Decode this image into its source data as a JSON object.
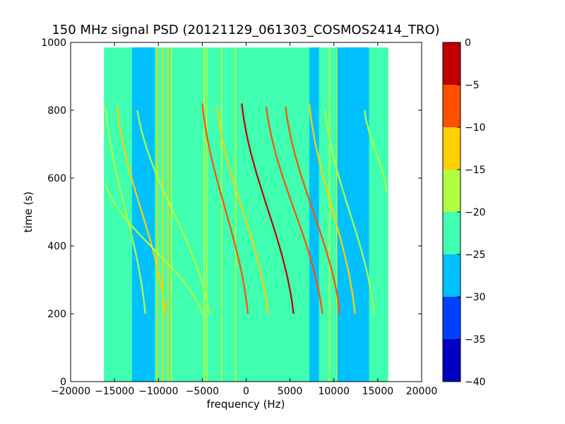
{
  "chart_data": {
    "type": "heatmap",
    "title": "150 MHz signal PSD (20121129_061303_COSMOS2414_TRO)",
    "xlabel": "frequency (Hz)",
    "ylabel": "time (s)",
    "xlim": [
      -20000,
      20000
    ],
    "ylim": [
      0,
      1000
    ],
    "x_ticks": [
      -20000,
      -15000,
      -10000,
      -5000,
      0,
      5000,
      10000,
      15000,
      20000
    ],
    "y_ticks": [
      0,
      200,
      400,
      600,
      800,
      1000
    ],
    "data_extent": {
      "freq": [
        -16200,
        16200
      ],
      "time": [
        0,
        985
      ]
    },
    "colorbar": {
      "levels": [
        -40,
        -35,
        -30,
        -25,
        -20,
        -15,
        -10,
        -5,
        0
      ],
      "tick_labels": [
        "−40",
        "−35",
        "−30",
        "−25",
        "−20",
        "−15",
        "−10",
        "−5",
        "0"
      ],
      "colors": [
        "#0000c0",
        "#0040ff",
        "#00c0ff",
        "#40ffb0",
        "#b0ff40",
        "#ffd000",
        "#ff5000",
        "#c00000"
      ]
    },
    "background_regions": [
      {
        "freq": [
          -16200,
          16200
        ],
        "level": -22
      },
      {
        "freq": [
          -13000,
          -11300
        ],
        "level": -27
      },
      {
        "freq": [
          -11300,
          -10400
        ],
        "level": -26
      },
      {
        "freq": [
          7200,
          8300
        ],
        "level": -26
      },
      {
        "freq": [
          10200,
          12800
        ],
        "level": -27
      },
      {
        "freq": [
          12800,
          14000
        ],
        "level": -26
      }
    ],
    "vertical_lines": [
      {
        "freq": -10100,
        "level": -12
      },
      {
        "freq": -9500,
        "level": -12
      },
      {
        "freq": -8900,
        "level": -14
      },
      {
        "freq": -8500,
        "level": -16
      },
      {
        "freq": -4800,
        "level": -17
      },
      {
        "freq": -4500,
        "level": -16
      },
      {
        "freq": -2800,
        "level": -17
      },
      {
        "freq": -1200,
        "level": -17
      },
      {
        "freq": 9500,
        "level": -18
      },
      {
        "freq": 10300,
        "level": -20
      }
    ],
    "doppler_tracks": [
      {
        "t_start": 820,
        "t_end": 200,
        "f_start": -5000,
        "f_end": 200,
        "level": -8
      },
      {
        "t_start": 810,
        "t_end": 200,
        "f_start": -3300,
        "f_end": 2500,
        "level": -12
      },
      {
        "t_start": 820,
        "t_end": 200,
        "f_start": -500,
        "f_end": 5400,
        "level": -5
      },
      {
        "t_start": 810,
        "t_end": 200,
        "f_start": 2300,
        "f_end": 8700,
        "level": -8
      },
      {
        "t_start": 810,
        "t_end": 200,
        "f_start": 4500,
        "f_end": 10700,
        "level": -10
      },
      {
        "t_start": 820,
        "t_end": 200,
        "f_start": 7200,
        "f_end": 12400,
        "level": -14
      },
      {
        "t_start": 810,
        "t_end": 200,
        "f_start": -14700,
        "f_end": -9200,
        "level": -14
      },
      {
        "t_start": 810,
        "t_end": 200,
        "f_start": -16000,
        "f_end": -11500,
        "level": -16
      },
      {
        "t_start": 580,
        "t_end": 200,
        "f_start": -16000,
        "f_end": -5000,
        "level": -18
      },
      {
        "t_start": 800,
        "t_end": 200,
        "f_start": -12400,
        "f_end": -4200,
        "level": -17
      },
      {
        "t_start": 800,
        "t_end": 560,
        "f_start": 13500,
        "f_end": 16000,
        "level": -18
      },
      {
        "t_start": 800,
        "t_end": 200,
        "f_start": 9000,
        "f_end": 14600,
        "level": -17
      }
    ]
  }
}
